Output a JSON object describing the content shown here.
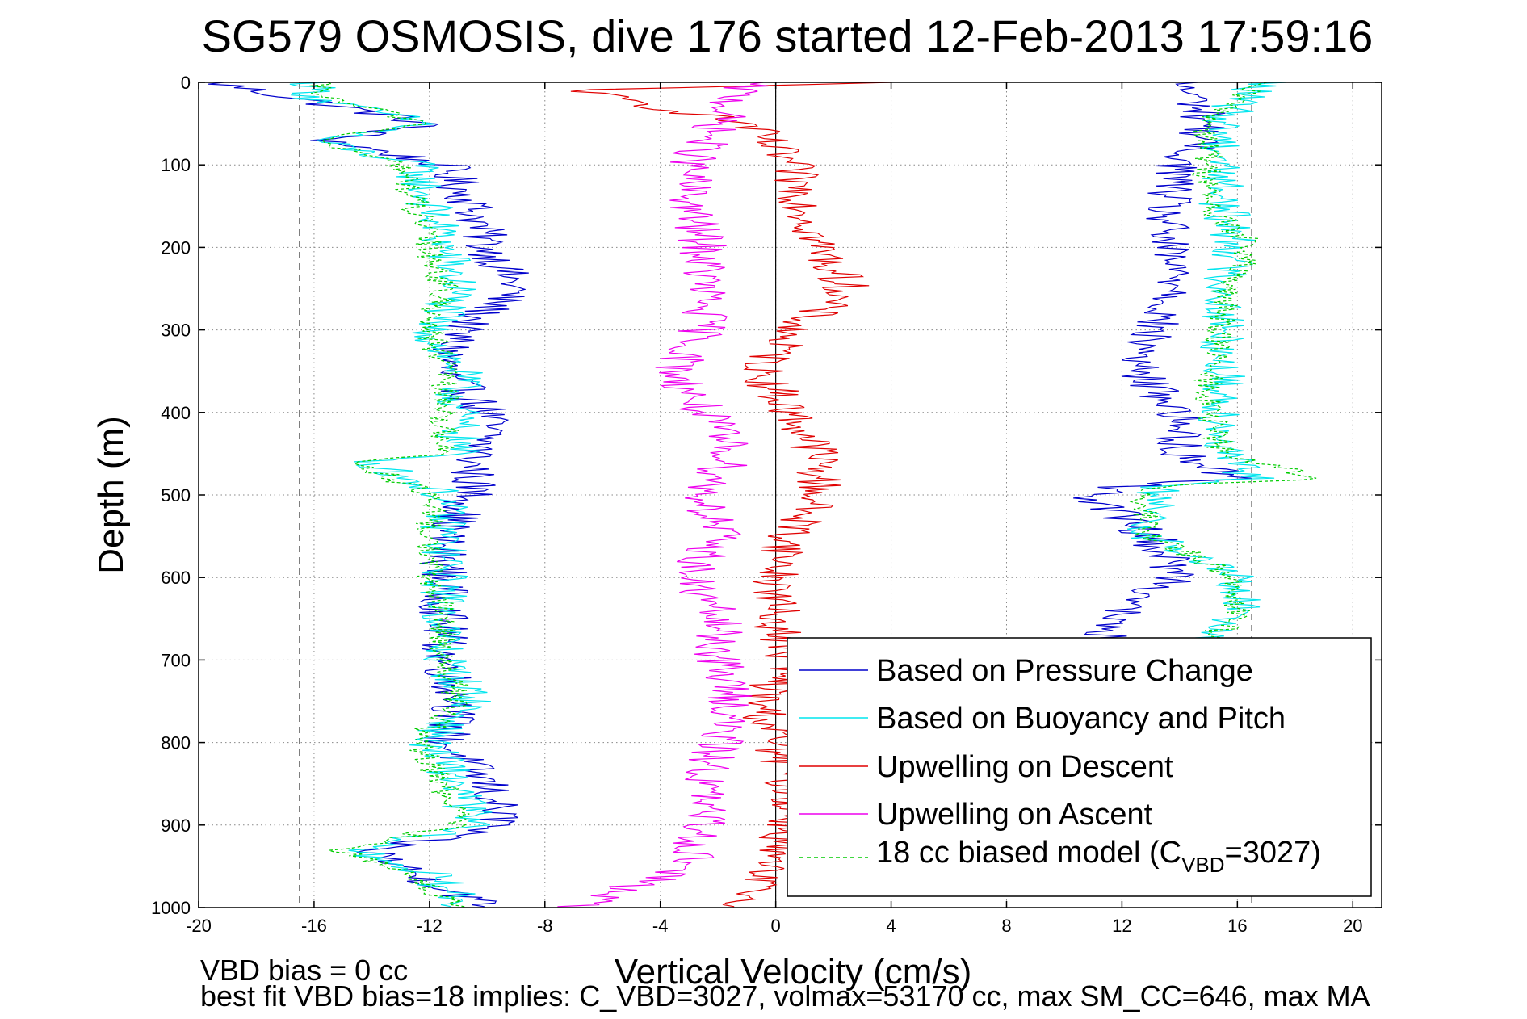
{
  "chart_data": {
    "type": "line",
    "title": "SG579 OSMOSIS, dive 176 started 12-Feb-2013 17:59:16",
    "xlabel": "Vertical Velocity (cm/s)",
    "ylabel": "Depth (m)",
    "xlim": [
      -20,
      21
    ],
    "ylim": [
      0,
      1000
    ],
    "y_reversed": true,
    "grid": true,
    "x_ticks": [
      -20,
      -16,
      -12,
      -8,
      -4,
      0,
      4,
      8,
      12,
      16,
      20
    ],
    "y_ticks": [
      0,
      100,
      200,
      300,
      400,
      500,
      600,
      700,
      800,
      900,
      1000
    ],
    "x_tick_labels": [
      "-20",
      "-16",
      "-12",
      "-8",
      "-4",
      "0",
      "4",
      "8",
      "12",
      "16",
      "20"
    ],
    "y_tick_labels": [
      "0",
      "100",
      "200",
      "300",
      "400",
      "500",
      "600",
      "700",
      "800",
      "900",
      "1000"
    ],
    "reference_lines": [
      -16.5,
      16.5
    ],
    "legend_position": "bottom-right",
    "legend": [
      {
        "label": "Based on Pressure Change",
        "color": "#0000cc",
        "style": "solid"
      },
      {
        "label": "Based on Buoyancy and Pitch",
        "color": "#00e5ee",
        "style": "solid"
      },
      {
        "label": "Upwelling on Descent",
        "color": "#e00000",
        "style": "solid"
      },
      {
        "label": "Upwelling on Ascent",
        "color": "#ee00ee",
        "style": "solid"
      }
    ],
    "legend_model": {
      "prefix": "18 cc biased model (C",
      "subscript": "VBD",
      "suffix": "=3027)",
      "color": "#00cc00",
      "style": "dashed"
    },
    "series": [
      {
        "name": "Based on Pressure Change (descent)",
        "color": "#0000cc",
        "depth": [
          0,
          10,
          30,
          50,
          70,
          100,
          150,
          200,
          250,
          300,
          350,
          400,
          430,
          460,
          500,
          550,
          600,
          650,
          700,
          750,
          800,
          850,
          900,
          930,
          960,
          990,
          1000
        ],
        "values": [
          -19.5,
          -18,
          -15,
          -12,
          -15.5,
          -11.5,
          -10.5,
          -10,
          -9,
          -11,
          -11.5,
          -10,
          -10,
          -10.5,
          -10.5,
          -11.5,
          -11.5,
          -11.5,
          -11.5,
          -11,
          -11.5,
          -10,
          -9.5,
          -14,
          -12.5,
          -10.5,
          -10
        ]
      },
      {
        "name": "Based on Buoyancy and Pitch (descent)",
        "color": "#00e5ee",
        "depth": [
          0,
          20,
          50,
          70,
          100,
          150,
          200,
          250,
          300,
          350,
          400,
          450,
          460,
          500,
          550,
          600,
          650,
          700,
          750,
          800,
          850,
          900,
          930,
          960,
          990,
          1000
        ],
        "values": [
          -16,
          -16,
          -12,
          -16,
          -12.5,
          -12,
          -11.5,
          -11,
          -12,
          -11,
          -11,
          -11,
          -14,
          -11.5,
          -11.5,
          -11.5,
          -11.5,
          -11.5,
          -10.5,
          -12,
          -11,
          -10.5,
          -14.5,
          -12,
          -11,
          -11
        ]
      },
      {
        "name": "Upwelling on Descent",
        "color": "#e00000",
        "depth": [
          0,
          10,
          50,
          100,
          150,
          200,
          250,
          300,
          350,
          400,
          450,
          500,
          550,
          600,
          650,
          700,
          750,
          800,
          850,
          900,
          950,
          1000
        ],
        "values": [
          3.5,
          -7,
          -1,
          0.5,
          1,
          1.5,
          2.5,
          0.5,
          -0.5,
          0.5,
          1.5,
          1.5,
          0.5,
          0,
          0,
          0.5,
          -0.5,
          0,
          0.5,
          0.5,
          -0.5,
          -1
        ]
      },
      {
        "name": "Upwelling on Ascent",
        "color": "#ee00ee",
        "depth": [
          0,
          20,
          50,
          100,
          150,
          200,
          250,
          300,
          350,
          400,
          450,
          500,
          550,
          600,
          650,
          700,
          750,
          800,
          850,
          900,
          950,
          1000
        ],
        "values": [
          -1,
          -1.5,
          -2,
          -3,
          -3,
          -2.5,
          -2.5,
          -2.5,
          -3.5,
          -2.5,
          -1.5,
          -2.5,
          -2,
          -3,
          -2,
          -2,
          -1.5,
          -2,
          -2.5,
          -2.5,
          -3,
          -7
        ]
      },
      {
        "name": "Based on Pressure Change (ascent)",
        "color": "#0000cc",
        "depth": [
          0,
          20,
          50,
          100,
          150,
          200,
          250,
          300,
          350,
          400,
          450,
          480,
          490,
          500,
          550,
          600,
          650,
          700
        ],
        "values": [
          14,
          14.5,
          15,
          14,
          13.5,
          13.5,
          14,
          13,
          12.5,
          14,
          14,
          16,
          12,
          11,
          13,
          14,
          11.5,
          11.5
        ]
      },
      {
        "name": "Based on Buoyancy and Pitch (ascent)",
        "color": "#00e5ee",
        "depth": [
          0,
          20,
          50,
          100,
          150,
          200,
          250,
          300,
          350,
          400,
          450,
          480,
          490,
          500,
          550,
          600,
          650,
          700
        ],
        "values": [
          17,
          16,
          15.5,
          15.5,
          15.5,
          16,
          15.5,
          15.5,
          15.5,
          15.5,
          15.5,
          16.5,
          13.5,
          13,
          13,
          16,
          16,
          14
        ]
      },
      {
        "name": "18 cc biased model (descent)",
        "color": "#00cc00",
        "dashed": true,
        "depth": [
          0,
          20,
          50,
          70,
          100,
          150,
          200,
          250,
          300,
          350,
          400,
          450,
          460,
          500,
          550,
          600,
          650,
          700,
          750,
          800,
          850,
          900,
          930,
          960,
          990,
          1000
        ],
        "values": [
          -16,
          -15.5,
          -12,
          -16,
          -13,
          -12.5,
          -12,
          -11.5,
          -12,
          -11.5,
          -11.5,
          -11.5,
          -14.5,
          -12,
          -12,
          -12,
          -11.5,
          -11.5,
          -11,
          -12.5,
          -11.5,
          -11,
          -15,
          -12.5,
          -11.5,
          -11
        ]
      },
      {
        "name": "18 cc biased model (ascent)",
        "color": "#00cc00",
        "dashed": true,
        "depth": [
          0,
          20,
          50,
          100,
          150,
          200,
          250,
          300,
          350,
          400,
          450,
          480,
          490,
          500,
          550,
          600,
          650,
          700
        ],
        "values": [
          16.5,
          16,
          15,
          15,
          15,
          16.5,
          15.5,
          15.5,
          15,
          15,
          15.5,
          19,
          13,
          12.5,
          13,
          16,
          16,
          14
        ]
      }
    ]
  },
  "notes": {
    "line1": "VBD bias = 0 cc",
    "line2": "best fit VBD bias=18 implies: C_VBD=3027, volmax=53170 cc, max SM_CC=646, max MA"
  }
}
